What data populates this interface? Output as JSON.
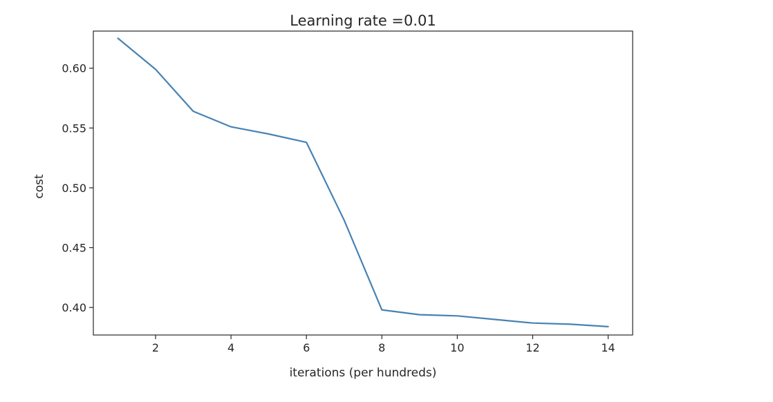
{
  "chart_data": {
    "type": "line",
    "title": "Learning rate =0.01",
    "xlabel": "iterations (per hundreds)",
    "ylabel": "cost",
    "xlim": [
      0.35,
      14.65
    ],
    "ylim": [
      0.377,
      0.631
    ],
    "x_ticks": [
      2,
      4,
      6,
      8,
      10,
      12,
      14
    ],
    "x_tick_labels": [
      "2",
      "4",
      "6",
      "8",
      "10",
      "12",
      "14"
    ],
    "y_ticks": [
      0.4,
      0.45,
      0.5,
      0.55,
      0.6
    ],
    "y_tick_labels": [
      "0.40",
      "0.45",
      "0.50",
      "0.55",
      "0.60"
    ],
    "grid": false,
    "series": [
      {
        "color": "#4682b4",
        "x": [
          1,
          2,
          3,
          4,
          5,
          6,
          7,
          8,
          9,
          10,
          11,
          12,
          13,
          14
        ],
        "y": [
          0.625,
          0.599,
          0.564,
          0.551,
          0.545,
          0.538,
          0.473,
          0.398,
          0.394,
          0.393,
          0.39,
          0.387,
          0.386,
          0.384
        ]
      }
    ]
  }
}
